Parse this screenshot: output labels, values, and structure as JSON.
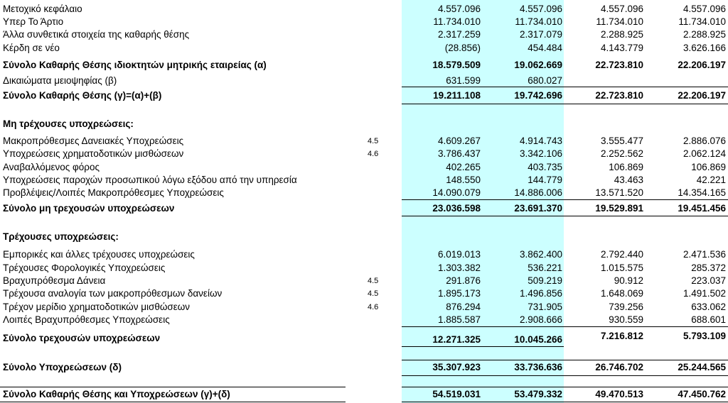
{
  "rows": [
    {
      "label": "Μετοχικό κεφάλαιο",
      "v1": "4.557.096",
      "v2": "4.557.096",
      "v3": "4.557.096",
      "v4": "4.557.096"
    },
    {
      "label": "Υπερ Το Άρτιο",
      "v1": "11.734.010",
      "v2": "11.734.010",
      "v3": "11.734.010",
      "v4": "11.734.010"
    },
    {
      "label": "Άλλα συνθετικά στοιχεία της καθαρής θέσης",
      "v1": "2.317.259",
      "v2": "2.317.079",
      "v3": "2.288.925",
      "v4": "2.288.925"
    },
    {
      "label": "Κέρδη σε νέο",
      "v1": "(28.856)",
      "v2": "454.484",
      "v3": "4.143.779",
      "v4": "3.626.166"
    },
    {
      "label": "Σύνολο Καθαρής Θέσης ιδιοκτητών μητρικής εταιρείας (α)",
      "v1": "18.579.509",
      "v2": "19.062.669",
      "v3": "22.723.810",
      "v4": "22.206.197"
    },
    {
      "label": "Δικαιώματα μειοψηφίας (β)",
      "v1": "631.599",
      "v2": "680.027",
      "v3": "",
      "v4": ""
    },
    {
      "label": "Σύνολο Καθαρής Θέσης (γ)=(α)+(β)",
      "v1": "19.211.108",
      "v2": "19.742.696",
      "v3": "22.723.810",
      "v4": "22.206.197"
    },
    {
      "label": "Μη τρέχουσες υποχρεώσεις:"
    },
    {
      "label": "Μακροπρόθεσμες Δανειακές Υποχρεώσεις",
      "note": "4.5",
      "v1": "4.609.267",
      "v2": "4.914.743",
      "v3": "3.555.477",
      "v4": "2.886.076"
    },
    {
      "label": "Υποχρεώσεις χρηματοδοτικών μισθώσεων",
      "note": "4.6",
      "v1": "3.786.437",
      "v2": "3.342.106",
      "v3": "2.252.562",
      "v4": "2.062.124"
    },
    {
      "label": "Αναβαλλόμενος φόρος",
      "v1": "402.265",
      "v2": "403.735",
      "v3": "106.869",
      "v4": "106.869"
    },
    {
      "label": "Υποχρεώσεις παροχών προσωπικού λόγω εξόδου από την υπηρεσία",
      "v1": "148.550",
      "v2": "144.779",
      "v3": "43.463",
      "v4": "42.221"
    },
    {
      "label": "Προβλέψεις/Λοιπές Μακροπρόθεσμες Υποχρεώσεις",
      "v1": "14.090.079",
      "v2": "14.886.006",
      "v3": "13.571.520",
      "v4": "14.354.165"
    },
    {
      "label": "Σύνολο μη τρεχουσών υποχρεώσεων",
      "v1": "23.036.598",
      "v2": "23.691.370",
      "v3": "19.529.891",
      "v4": "19.451.456"
    },
    {
      "label": "Τρέχουσες  υποχρεώσεις:"
    },
    {
      "label": "Εμπορικές και άλλες τρέχουσες υποχρεώσεις",
      "v1": "6.019.013",
      "v2": "3.862.400",
      "v3": "2.792.440",
      "v4": "2.471.536"
    },
    {
      "label": "Τρέχουσες Φορολογικές Υποχρεώσεις",
      "v1": "1.303.382",
      "v2": "536.221",
      "v3": "1.015.575",
      "v4": "285.372"
    },
    {
      "label": "Βραχυπρόθεσμα Δάνεια",
      "note": "4.5",
      "v1": "291.876",
      "v2": "509.219",
      "v3": "90.912",
      "v4": "223.037"
    },
    {
      "label": "Τρέχουσα αναλογία των μακροπρόθεσμων δανείων",
      "note": "4.5",
      "v1": "1.895.173",
      "v2": "1.496.856",
      "v3": "1.648.069",
      "v4": "1.491.502"
    },
    {
      "label": "Τρέχον μερίδιο χρηματοδοτικών μισθώσεων",
      "note": "4.6",
      "v1": "876.294",
      "v2": "731.905",
      "v3": "739.256",
      "v4": "633.062"
    },
    {
      "label": "Λοιπές Βραχυπρόθεσμες Υποχρεώσεις",
      "v1": "1.885.587",
      "v2": "2.908.666",
      "v3": "930.559",
      "v4": "688.601"
    },
    {
      "label": "Σύνολο τρεχουσών υποχρεώσεων",
      "v1": "12.271.325",
      "v2": "10.045.266",
      "v3": "7.216.812",
      "v4": "5.793.109"
    },
    {
      "label": "Σύνολο Υποχρεώσεων (δ)",
      "v1": "35.307.923",
      "v2": "33.736.636",
      "v3": "26.746.702",
      "v4": "25.244.565"
    },
    {
      "label": "Σύνολο Καθαρής Θέσης  και Υποχρεώσεων (γ)+(δ)",
      "v1": "54.519.031",
      "v2": "53.479.332",
      "v3": "49.470.513",
      "v4": "47.450.762"
    }
  ]
}
